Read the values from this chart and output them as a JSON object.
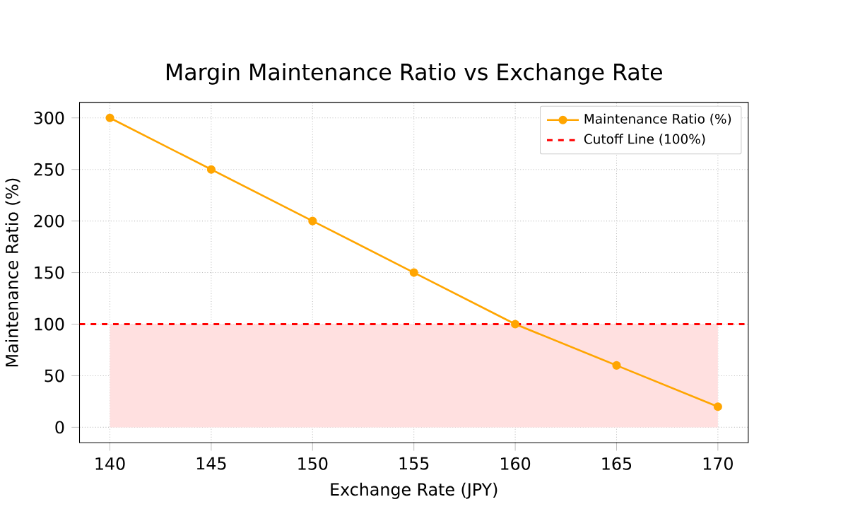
{
  "chart_data": {
    "type": "line",
    "title": "Margin Maintenance Ratio vs Exchange Rate",
    "xlabel": "Exchange Rate (JPY)",
    "ylabel": "Maintenance Ratio (%)",
    "x": [
      140,
      145,
      150,
      155,
      160,
      165,
      170
    ],
    "series": [
      {
        "name": "Maintenance Ratio (%)",
        "color": "#ffa500",
        "values": [
          300,
          250,
          200,
          150,
          100,
          60,
          20
        ]
      }
    ],
    "ref_lines": [
      {
        "axis": "y",
        "value": 100,
        "label": "Cutoff Line (100%)",
        "color": "#ff0000",
        "line_style": "dashed"
      }
    ],
    "bands": [
      {
        "axis": "y",
        "from": 0,
        "to": 100,
        "color": "#ffe0e0"
      }
    ],
    "xlim": [
      138.5,
      171.5
    ],
    "ylim": [
      -15,
      315
    ],
    "xticks": [
      140,
      145,
      150,
      155,
      160,
      165,
      170
    ],
    "yticks": [
      0,
      50,
      100,
      150,
      200,
      250,
      300
    ],
    "grid": true,
    "legend": "top right",
    "marker": "circle",
    "line_style": "solid"
  }
}
